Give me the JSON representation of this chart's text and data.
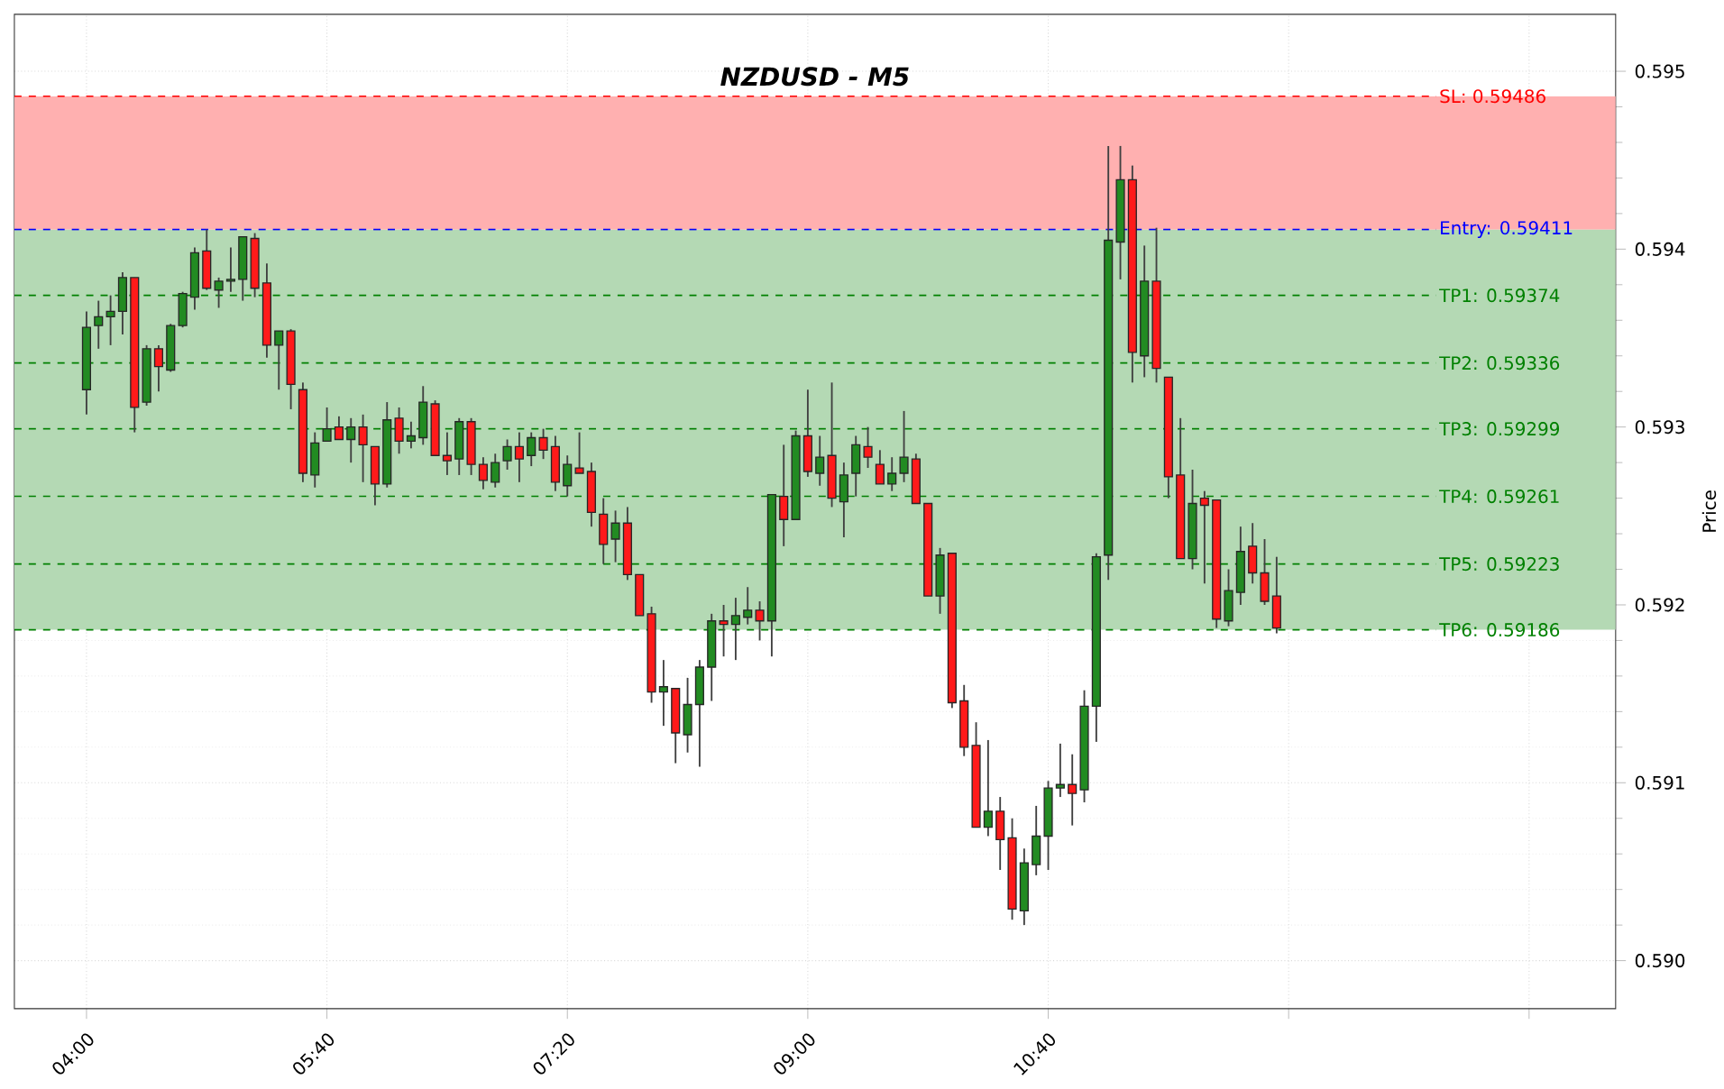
{
  "chart_data": {
    "type": "candlestick",
    "title": "NZDUSD - M5",
    "ylabel": "Price",
    "x": [
      4,
      4.0833,
      4.1667,
      4.25,
      4.3333,
      4.4167,
      4.5,
      4.5833,
      4.6667,
      4.75,
      4.8333,
      4.9167,
      5,
      5.0833,
      5.1667,
      5.25,
      5.3333,
      5.4167,
      5.5,
      5.5833,
      5.6667,
      5.75,
      5.8333,
      5.9167,
      6,
      6.0833,
      6.1667,
      6.25,
      6.3333,
      6.4167,
      6.5,
      6.5833,
      6.6667,
      6.75,
      6.8333,
      6.9167,
      7,
      7.0833,
      7.1667,
      7.25,
      7.3333,
      7.4167,
      7.5,
      7.5833,
      7.6667,
      7.75,
      7.8333,
      7.9167,
      8,
      8.0833,
      8.1667,
      8.25,
      8.3333,
      8.4167,
      8.5,
      8.5833,
      8.6667,
      8.75,
      8.8333,
      8.9167,
      9,
      9.0833,
      9.1667,
      9.25,
      9.3333,
      9.4167,
      9.5,
      9.5833,
      9.6667,
      9.75,
      9.8333,
      9.9167,
      10,
      10.0833,
      10.1667,
      10.25,
      10.3333,
      10.4167,
      10.5,
      10.5833,
      10.6667,
      10.75,
      10.8333,
      10.9167,
      11,
      11.0833,
      11.1667,
      11.25,
      11.3333,
      11.4167,
      11.5,
      11.5833,
      11.6667,
      11.75,
      11.8333,
      11.9167,
      12,
      12.0833,
      12.1667,
      12.25
    ],
    "ohlc": [
      [
        0.59321,
        0.59365,
        0.59307,
        0.59356
      ],
      [
        0.59357,
        0.59371,
        0.59344,
        0.59362
      ],
      [
        0.59362,
        0.59374,
        0.59346,
        0.59365
      ],
      [
        0.59365,
        0.59387,
        0.59352,
        0.59384
      ],
      [
        0.59384,
        0.59384,
        0.59297,
        0.59311
      ],
      [
        0.59314,
        0.59346,
        0.59312,
        0.59344
      ],
      [
        0.59344,
        0.59346,
        0.5932,
        0.59334
      ],
      [
        0.59332,
        0.59358,
        0.59331,
        0.59357
      ],
      [
        0.59357,
        0.59376,
        0.59356,
        0.59375
      ],
      [
        0.59373,
        0.59401,
        0.59366,
        0.59398
      ],
      [
        0.59399,
        0.59411,
        0.59377,
        0.59378
      ],
      [
        0.59377,
        0.59384,
        0.59367,
        0.59382
      ],
      [
        0.59382,
        0.59401,
        0.59376,
        0.59383
      ],
      [
        0.59383,
        0.59407,
        0.59371,
        0.59407
      ],
      [
        0.59406,
        0.59409,
        0.59373,
        0.59378
      ],
      [
        0.59381,
        0.59392,
        0.59339,
        0.59346
      ],
      [
        0.59346,
        0.59354,
        0.59321,
        0.59354
      ],
      [
        0.59354,
        0.59355,
        0.5931,
        0.59324
      ],
      [
        0.59321,
        0.59325,
        0.59269,
        0.59274
      ],
      [
        0.59273,
        0.59297,
        0.59266,
        0.59291
      ],
      [
        0.59292,
        0.59311,
        0.59292,
        0.59299
      ],
      [
        0.593,
        0.59306,
        0.59293,
        0.59293
      ],
      [
        0.59293,
        0.59305,
        0.5928,
        0.593
      ],
      [
        0.593,
        0.59307,
        0.59269,
        0.5929
      ],
      [
        0.59289,
        0.59289,
        0.59256,
        0.59268
      ],
      [
        0.59268,
        0.59314,
        0.59266,
        0.59304
      ],
      [
        0.59305,
        0.59311,
        0.59285,
        0.59292
      ],
      [
        0.59292,
        0.59303,
        0.59288,
        0.59295
      ],
      [
        0.59294,
        0.59323,
        0.5929,
        0.59314
      ],
      [
        0.59313,
        0.59315,
        0.59284,
        0.59284
      ],
      [
        0.59284,
        0.59297,
        0.59273,
        0.59281
      ],
      [
        0.59282,
        0.59305,
        0.59273,
        0.59303
      ],
      [
        0.59303,
        0.59305,
        0.59273,
        0.59279
      ],
      [
        0.59279,
        0.59283,
        0.59265,
        0.5927
      ],
      [
        0.59269,
        0.59285,
        0.59266,
        0.5928
      ],
      [
        0.59281,
        0.59293,
        0.59276,
        0.59289
      ],
      [
        0.59289,
        0.59297,
        0.59269,
        0.59282
      ],
      [
        0.59284,
        0.59297,
        0.59278,
        0.59294
      ],
      [
        0.59294,
        0.59299,
        0.59282,
        0.59287
      ],
      [
        0.59289,
        0.59295,
        0.59264,
        0.59269
      ],
      [
        0.59267,
        0.59284,
        0.59261,
        0.59279
      ],
      [
        0.59277,
        0.59297,
        0.59274,
        0.59274
      ],
      [
        0.59275,
        0.5928,
        0.59244,
        0.59252
      ],
      [
        0.59251,
        0.5926,
        0.59223,
        0.59234
      ],
      [
        0.59237,
        0.59253,
        0.59224,
        0.59246
      ],
      [
        0.59246,
        0.59255,
        0.59214,
        0.59217
      ],
      [
        0.59217,
        0.59217,
        0.59194,
        0.59194
      ],
      [
        0.59195,
        0.59199,
        0.59145,
        0.59151
      ],
      [
        0.59151,
        0.59169,
        0.59132,
        0.59154
      ],
      [
        0.59153,
        0.59153,
        0.59111,
        0.59128
      ],
      [
        0.59127,
        0.59159,
        0.59117,
        0.59144
      ],
      [
        0.59144,
        0.59169,
        0.59109,
        0.59165
      ],
      [
        0.59165,
        0.59195,
        0.59146,
        0.59191
      ],
      [
        0.59191,
        0.592,
        0.59171,
        0.59189
      ],
      [
        0.59189,
        0.59204,
        0.59169,
        0.59194
      ],
      [
        0.59193,
        0.5921,
        0.59189,
        0.59197
      ],
      [
        0.59197,
        0.59202,
        0.5918,
        0.59191
      ],
      [
        0.59191,
        0.59262,
        0.59171,
        0.59262
      ],
      [
        0.59261,
        0.5929,
        0.59233,
        0.59248
      ],
      [
        0.59248,
        0.59298,
        0.59248,
        0.59295
      ],
      [
        0.59295,
        0.59321,
        0.59272,
        0.59275
      ],
      [
        0.59274,
        0.59295,
        0.59267,
        0.59283
      ],
      [
        0.59284,
        0.59325,
        0.59255,
        0.5926
      ],
      [
        0.59258,
        0.5928,
        0.59238,
        0.59273
      ],
      [
        0.59274,
        0.59295,
        0.59261,
        0.5929
      ],
      [
        0.59289,
        0.593,
        0.59277,
        0.59283
      ],
      [
        0.59279,
        0.59287,
        0.59268,
        0.59268
      ],
      [
        0.59268,
        0.59283,
        0.59264,
        0.59274
      ],
      [
        0.59274,
        0.59309,
        0.59269,
        0.59283
      ],
      [
        0.59282,
        0.59285,
        0.59257,
        0.59257
      ],
      [
        0.59257,
        0.59257,
        0.59205,
        0.59205
      ],
      [
        0.59205,
        0.59232,
        0.59195,
        0.59228
      ],
      [
        0.59229,
        0.59229,
        0.59142,
        0.59145
      ],
      [
        0.59146,
        0.59155,
        0.59115,
        0.5912
      ],
      [
        0.59121,
        0.59134,
        0.59075,
        0.59075
      ],
      [
        0.59075,
        0.59124,
        0.5907,
        0.59084
      ],
      [
        0.59084,
        0.59092,
        0.59051,
        0.59068
      ],
      [
        0.59069,
        0.5908,
        0.59023,
        0.59029
      ],
      [
        0.59028,
        0.59063,
        0.5902,
        0.59055
      ],
      [
        0.59054,
        0.59087,
        0.59048,
        0.5907
      ],
      [
        0.5907,
        0.59101,
        0.59051,
        0.59097
      ],
      [
        0.59097,
        0.59122,
        0.59092,
        0.59099
      ],
      [
        0.59099,
        0.59116,
        0.59076,
        0.59094
      ],
      [
        0.59096,
        0.59152,
        0.59089,
        0.59143
      ],
      [
        0.59143,
        0.59229,
        0.59123,
        0.59227
      ],
      [
        0.59228,
        0.59458,
        0.59214,
        0.59405
      ],
      [
        0.59404,
        0.59458,
        0.59383,
        0.59439
      ],
      [
        0.59439,
        0.59447,
        0.59325,
        0.59342
      ],
      [
        0.5934,
        0.59402,
        0.59328,
        0.59382
      ],
      [
        0.59382,
        0.59412,
        0.59325,
        0.59333
      ],
      [
        0.59328,
        0.59328,
        0.5926,
        0.59272
      ],
      [
        0.59273,
        0.59305,
        0.59226,
        0.59226
      ],
      [
        0.59226,
        0.59276,
        0.5922,
        0.59257
      ],
      [
        0.5926,
        0.59264,
        0.59212,
        0.59256
      ],
      [
        0.59259,
        0.59259,
        0.59187,
        0.59192
      ],
      [
        0.59191,
        0.5922,
        0.59188,
        0.59208
      ],
      [
        0.59207,
        0.59244,
        0.592,
        0.5923
      ],
      [
        0.59233,
        0.59246,
        0.59212,
        0.59218
      ],
      [
        0.59218,
        0.59237,
        0.592,
        0.59202
      ],
      [
        0.59205,
        0.59227,
        0.59184,
        0.59187
      ]
    ],
    "colors": [
      "#228b22",
      "#228b22",
      "#228b22",
      "#228b22",
      "#ff1a1a",
      "#228b22",
      "#ff1a1a",
      "#228b22",
      "#228b22",
      "#228b22",
      "#ff1a1a",
      "#228b22",
      "#228b22",
      "#228b22",
      "#ff1a1a",
      "#ff1a1a",
      "#228b22",
      "#ff1a1a",
      "#ff1a1a",
      "#228b22",
      "#228b22",
      "#ff1a1a",
      "#228b22",
      "#ff1a1a",
      "#ff1a1a",
      "#228b22",
      "#ff1a1a",
      "#228b22",
      "#228b22",
      "#ff1a1a",
      "#ff1a1a",
      "#228b22",
      "#ff1a1a",
      "#ff1a1a",
      "#228b22",
      "#228b22",
      "#ff1a1a",
      "#228b22",
      "#ff1a1a",
      "#ff1a1a",
      "#228b22",
      "#ff1a1a",
      "#ff1a1a",
      "#ff1a1a",
      "#228b22",
      "#ff1a1a",
      "#ff1a1a",
      "#ff1a1a",
      "#228b22",
      "#ff1a1a",
      "#228b22",
      "#228b22",
      "#228b22",
      "#ff1a1a",
      "#228b22",
      "#228b22",
      "#ff1a1a",
      "#228b22",
      "#ff1a1a",
      "#228b22",
      "#ff1a1a",
      "#228b22",
      "#ff1a1a",
      "#228b22",
      "#228b22",
      "#ff1a1a",
      "#ff1a1a",
      "#228b22",
      "#228b22",
      "#ff1a1a",
      "#ff1a1a",
      "#228b22",
      "#ff1a1a",
      "#ff1a1a",
      "#ff1a1a",
      "#228b22",
      "#ff1a1a",
      "#ff1a1a",
      "#228b22",
      "#228b22",
      "#228b22",
      "#228b22",
      "#ff1a1a",
      "#228b22",
      "#228b22",
      "#228b22",
      "#228b22",
      "#ff1a1a",
      "#228b22",
      "#ff1a1a",
      "#ff1a1a",
      "#ff1a1a",
      "#228b22",
      "#ff1a1a",
      "#ff1a1a",
      "#228b22",
      "#228b22",
      "#ff1a1a",
      "#ff1a1a",
      "#ff1a1a"
    ],
    "xlim": [
      3.5,
      14.6
    ],
    "ylim": [
      0.58973,
      0.59532
    ],
    "xticks": [
      {
        "value": 4,
        "label": "04:00"
      },
      {
        "value": 5.6667,
        "label": "05:40"
      },
      {
        "value": 7.3333,
        "label": "07:20"
      },
      {
        "value": 9,
        "label": "09:00"
      },
      {
        "value": 10.6667,
        "label": "10:40"
      },
      {
        "value": 12.3333,
        "label": null
      },
      {
        "value": 14,
        "label": null
      }
    ],
    "yticks": [
      {
        "value": 0.59,
        "label": "0.590"
      },
      {
        "value": 0.591,
        "label": "0.591"
      },
      {
        "value": 0.592,
        "label": "0.592"
      },
      {
        "value": 0.593,
        "label": "0.593"
      },
      {
        "value": 0.594,
        "label": "0.594"
      },
      {
        "value": 0.595,
        "label": "0.595"
      }
    ],
    "bands": [
      {
        "axis": "y",
        "from": 0.59411,
        "to": 0.59486,
        "color": "#ffb0b0"
      },
      {
        "axis": "y",
        "from": 0.59186,
        "to": 0.59411,
        "color": "#b4d9b4"
      }
    ],
    "ref_lines": [
      {
        "axis": "y",
        "value": 0.59486,
        "label": "SL: 0.59486",
        "color": "#ff0000",
        "line_style": "dashed"
      },
      {
        "axis": "y",
        "value": 0.59411,
        "label": "Entry: 0.59411",
        "color": "#0000ff",
        "line_style": "dashed"
      },
      {
        "axis": "y",
        "value": 0.59374,
        "label": "TP1: 0.59374",
        "color": "#008000",
        "line_style": "dashed"
      },
      {
        "axis": "y",
        "value": 0.59336,
        "label": "TP2: 0.59336",
        "color": "#008000",
        "line_style": "dashed"
      },
      {
        "axis": "y",
        "value": 0.59299,
        "label": "TP3: 0.59299",
        "color": "#008000",
        "line_style": "dashed"
      },
      {
        "axis": "y",
        "value": 0.59261,
        "label": "TP4: 0.59261",
        "color": "#008000",
        "line_style": "dashed"
      },
      {
        "axis": "y",
        "value": 0.59223,
        "label": "TP5: 0.59223",
        "color": "#008000",
        "line_style": "dashed"
      },
      {
        "axis": "y",
        "value": 0.59186,
        "label": "TP6: 0.59186",
        "color": "#008000",
        "line_style": "dashed"
      }
    ],
    "grid": true
  }
}
